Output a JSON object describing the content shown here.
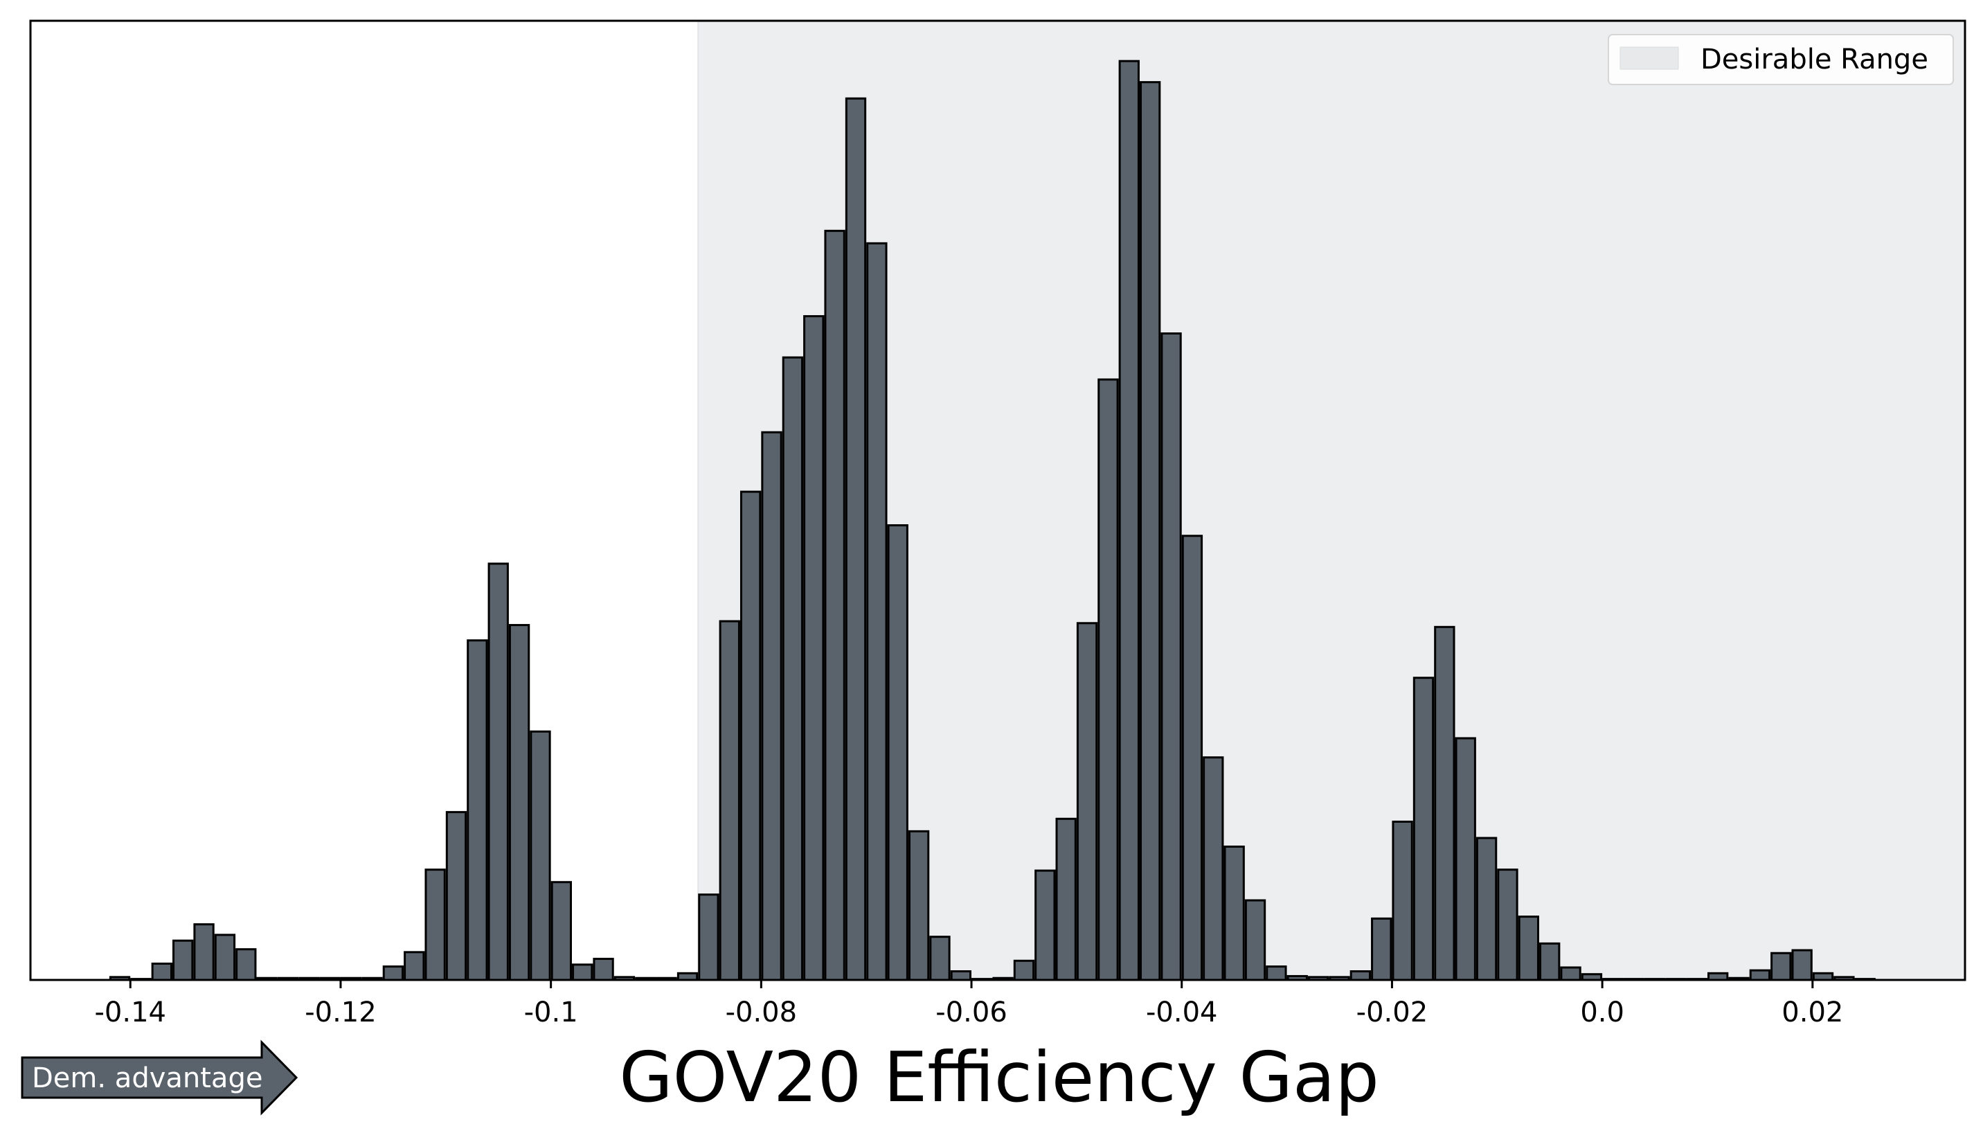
{
  "chart_data": {
    "type": "bar",
    "title": "",
    "xlabel": "GOV20 Efficiency Gap",
    "ylabel": "",
    "xlim": [
      -0.1495,
      0.0345
    ],
    "ylim": [
      0,
      1000
    ],
    "x_ticks": [
      {
        "value": -0.14,
        "label": "-0.14"
      },
      {
        "value": -0.12,
        "label": "-0.12"
      },
      {
        "value": -0.1,
        "label": "-0.1"
      },
      {
        "value": -0.08,
        "label": "-0.08"
      },
      {
        "value": -0.06,
        "label": "-0.06"
      },
      {
        "value": -0.04,
        "label": "-0.04"
      },
      {
        "value": -0.02,
        "label": "-0.02"
      },
      {
        "value": 0.0,
        "label": "0.0"
      },
      {
        "value": 0.02,
        "label": "0.02"
      }
    ],
    "y_ticks_shown": false,
    "grid": false,
    "bin_width": 0.002,
    "bar_color": "#5a626b",
    "bar_edge_color": "#000000",
    "x": [
      -0.141,
      -0.139,
      -0.137,
      -0.135,
      -0.133,
      -0.131,
      -0.129,
      -0.127,
      -0.125,
      -0.123,
      -0.121,
      -0.119,
      -0.117,
      -0.115,
      -0.113,
      -0.111,
      -0.109,
      -0.107,
      -0.105,
      -0.103,
      -0.101,
      -0.099,
      -0.097,
      -0.095,
      -0.093,
      -0.091,
      -0.089,
      -0.087,
      -0.085,
      -0.083,
      -0.081,
      -0.079,
      -0.077,
      -0.075,
      -0.073,
      -0.071,
      -0.069,
      -0.067,
      -0.065,
      -0.063,
      -0.061,
      -0.059,
      -0.057,
      -0.055,
      -0.053,
      -0.051,
      -0.049,
      -0.047,
      -0.045,
      -0.043,
      -0.041,
      -0.039,
      -0.037,
      -0.035,
      -0.033,
      -0.031,
      -0.029,
      -0.027,
      -0.025,
      -0.023,
      -0.021,
      -0.019,
      -0.017,
      -0.015,
      -0.013,
      -0.011,
      -0.009,
      -0.007,
      -0.005,
      -0.003,
      -0.001,
      0.001,
      0.003,
      0.005,
      0.007,
      0.009,
      0.011,
      0.013,
      0.015,
      0.017,
      0.019,
      0.021,
      0.023,
      0.025
    ],
    "values": [
      3,
      1,
      17,
      41,
      58,
      47,
      32,
      2,
      2,
      2,
      2,
      2,
      2,
      14,
      29,
      115,
      175,
      354,
      434,
      370,
      259,
      102,
      16,
      22,
      3,
      2,
      2,
      7,
      89,
      374,
      509,
      571,
      649,
      692,
      781,
      919,
      768,
      474,
      155,
      45,
      9,
      1,
      2,
      20,
      114,
      168,
      372,
      626,
      958,
      936,
      674,
      463,
      232,
      139,
      83,
      14,
      4,
      3,
      3,
      9,
      64,
      165,
      315,
      368,
      252,
      148,
      115,
      66,
      38,
      13,
      6,
      1,
      1,
      1,
      1,
      1,
      7,
      2,
      10,
      28,
      31,
      7,
      3,
      1
    ],
    "shaded_range": {
      "x": [
        -0.086,
        0.0345
      ],
      "color": "#edeef0"
    },
    "legend": {
      "position": "top-right",
      "entries": [
        {
          "label": "Desirable Range",
          "color": "#e8e9eb"
        }
      ]
    },
    "annotations": [
      {
        "text": "Dem. advantage",
        "type": "arrow-right",
        "color": "#5a626b"
      }
    ]
  }
}
